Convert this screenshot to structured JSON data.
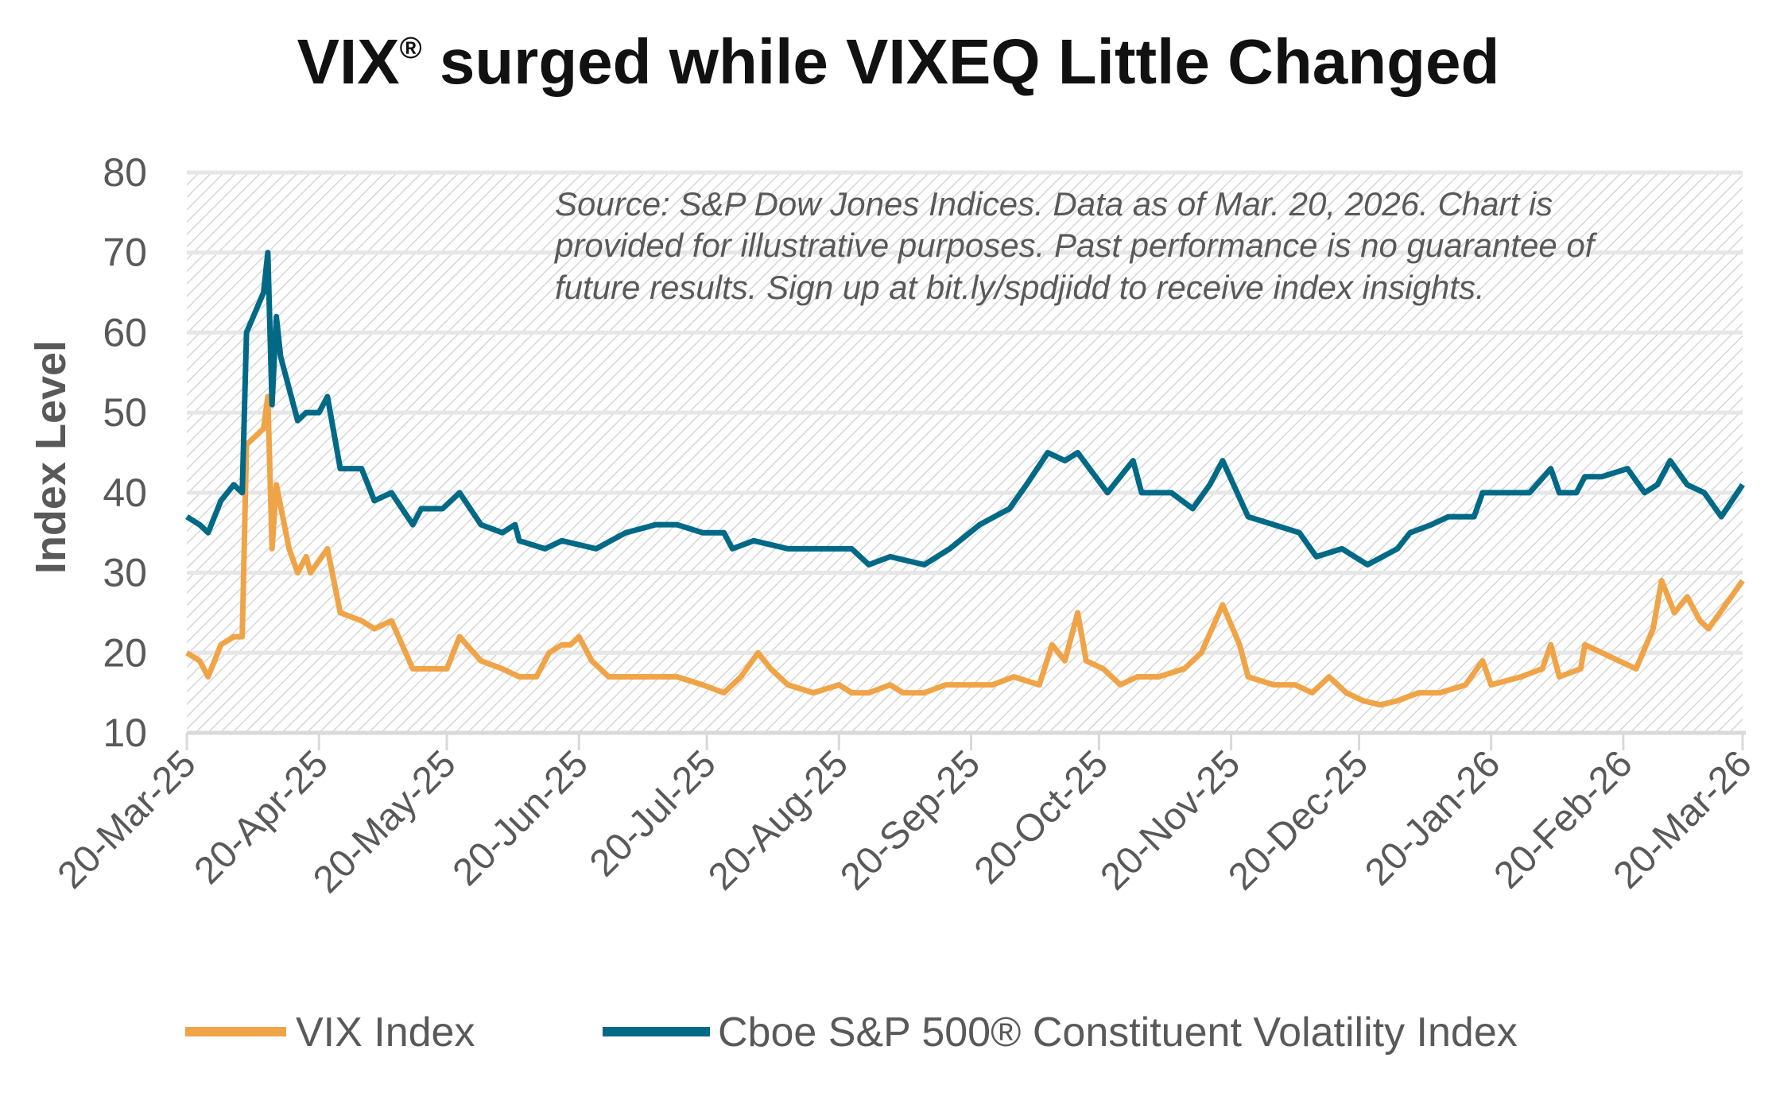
{
  "chart_data": {
    "type": "line",
    "title": {
      "prefix": "VIX",
      "mark": "®",
      "rest": " surged while VIXEQ Little Changed"
    },
    "ylabel": "Index Level",
    "xlabel": "",
    "ylim": [
      10,
      80
    ],
    "yticks": [
      "10",
      "20",
      "30",
      "40",
      "50",
      "60",
      "70",
      "80"
    ],
    "xlim": [
      "2025-03-20",
      "2026-03-20"
    ],
    "xticks": [
      {
        "date": "2025-03-20",
        "label": "20-Mar-25"
      },
      {
        "date": "2025-04-20",
        "label": "20-Apr-25"
      },
      {
        "date": "2025-05-20",
        "label": "20-May-25"
      },
      {
        "date": "2025-06-20",
        "label": "20-Jun-25"
      },
      {
        "date": "2025-07-20",
        "label": "20-Jul-25"
      },
      {
        "date": "2025-08-20",
        "label": "20-Aug-25"
      },
      {
        "date": "2025-09-20",
        "label": "20-Sep-25"
      },
      {
        "date": "2025-10-20",
        "label": "20-Oct-25"
      },
      {
        "date": "2025-11-20",
        "label": "20-Nov-25"
      },
      {
        "date": "2025-12-20",
        "label": "20-Dec-25"
      },
      {
        "date": "2026-01-20",
        "label": "20-Jan-26"
      },
      {
        "date": "2026-02-20",
        "label": "20-Feb-26"
      },
      {
        "date": "2026-03-20",
        "label": "20-Mar-26"
      }
    ],
    "grid": true,
    "background": "diagonal hatch",
    "legend_position": "bottom",
    "annotation": [
      "Source: S&P Dow Jones Indices. Data as of Mar. 20, 2026. Chart is",
      "provided for illustrative purposes. Past performance is no guarantee of",
      "future results. Sign up at bit.ly/spdjidd to receive index insights."
    ],
    "series": [
      {
        "name": "VIX Index",
        "color": "#F0A448",
        "x": [
          "2025-03-20",
          "2025-03-23",
          "2025-03-25",
          "2025-03-28",
          "2025-03-31",
          "2025-04-02",
          "2025-04-03",
          "2025-04-07",
          "2025-04-08",
          "2025-04-09",
          "2025-04-10",
          "2025-04-13",
          "2025-04-15",
          "2025-04-17",
          "2025-04-18",
          "2025-04-22",
          "2025-04-25",
          "2025-04-30",
          "2025-05-03",
          "2025-05-07",
          "2025-05-12",
          "2025-05-16",
          "2025-05-20",
          "2025-05-23",
          "2025-05-28",
          "2025-06-02",
          "2025-06-06",
          "2025-06-10",
          "2025-06-13",
          "2025-06-16",
          "2025-06-18",
          "2025-06-20",
          "2025-06-23",
          "2025-06-27",
          "2025-07-03",
          "2025-07-08",
          "2025-07-13",
          "2025-07-19",
          "2025-07-24",
          "2025-07-28",
          "2025-08-01",
          "2025-08-04",
          "2025-08-08",
          "2025-08-14",
          "2025-08-20",
          "2025-08-23",
          "2025-08-27",
          "2025-09-01",
          "2025-09-04",
          "2025-09-09",
          "2025-09-14",
          "2025-09-20",
          "2025-09-25",
          "2025-09-30",
          "2025-10-06",
          "2025-10-09",
          "2025-10-12",
          "2025-10-15",
          "2025-10-17",
          "2025-10-21",
          "2025-10-25",
          "2025-10-29",
          "2025-11-03",
          "2025-11-09",
          "2025-11-13",
          "2025-11-18",
          "2025-11-22",
          "2025-11-24",
          "2025-11-30",
          "2025-12-05",
          "2025-12-09",
          "2025-12-13",
          "2025-12-17",
          "2025-12-21",
          "2025-12-25",
          "2025-12-29",
          "2026-01-03",
          "2026-01-08",
          "2026-01-14",
          "2026-01-18",
          "2026-01-20",
          "2026-01-27",
          "2026-02-01",
          "2026-02-03",
          "2026-02-05",
          "2026-02-10",
          "2026-02-11",
          "2026-02-15",
          "2026-02-19",
          "2026-02-23",
          "2026-02-27",
          "2026-03-01",
          "2026-03-04",
          "2026-03-07",
          "2026-03-10",
          "2026-03-12",
          "2026-03-20"
        ],
        "y": [
          20,
          19,
          17,
          21,
          22,
          22,
          46,
          48,
          52,
          33,
          41,
          33,
          30,
          32,
          30,
          33,
          25,
          24,
          23,
          24,
          18,
          18,
          18,
          22,
          19,
          18,
          17,
          17,
          20,
          21,
          21,
          22,
          19,
          17,
          17,
          17,
          17,
          16,
          15,
          17,
          20,
          18,
          16,
          15,
          16,
          15,
          15,
          16,
          15,
          15,
          16,
          16,
          16,
          17,
          16,
          21,
          19,
          25,
          19,
          18,
          16,
          17,
          17,
          18,
          20,
          26,
          21,
          17,
          16,
          16,
          15,
          17,
          15,
          14,
          13.5,
          14,
          15,
          15,
          16,
          19,
          16,
          17,
          18,
          21,
          17,
          18,
          21,
          20,
          19,
          18,
          23,
          29,
          25,
          27,
          24,
          23,
          29
        ]
      },
      {
        "name": "Cboe S&P 500® Constituent Volatility Index",
        "color": "#006A86",
        "x": [
          "2025-03-20",
          "2025-03-23",
          "2025-03-25",
          "2025-03-28",
          "2025-03-31",
          "2025-04-02",
          "2025-04-03",
          "2025-04-07",
          "2025-04-08",
          "2025-04-09",
          "2025-04-10",
          "2025-04-11",
          "2025-04-15",
          "2025-04-17",
          "2025-04-20",
          "2025-04-22",
          "2025-04-25",
          "2025-04-30",
          "2025-05-03",
          "2025-05-07",
          "2025-05-12",
          "2025-05-14",
          "2025-05-19",
          "2025-05-23",
          "2025-05-28",
          "2025-06-02",
          "2025-06-05",
          "2025-06-06",
          "2025-06-12",
          "2025-06-16",
          "2025-06-24",
          "2025-07-01",
          "2025-07-08",
          "2025-07-13",
          "2025-07-19",
          "2025-07-24",
          "2025-07-26",
          "2025-07-31",
          "2025-08-08",
          "2025-08-19",
          "2025-08-23",
          "2025-08-27",
          "2025-09-01",
          "2025-09-09",
          "2025-09-15",
          "2025-09-22",
          "2025-09-29",
          "2025-10-03",
          "2025-10-08",
          "2025-10-12",
          "2025-10-15",
          "2025-10-22",
          "2025-10-28",
          "2025-10-30",
          "2025-11-06",
          "2025-11-11",
          "2025-11-15",
          "2025-11-18",
          "2025-11-24",
          "2025-11-30",
          "2025-12-06",
          "2025-12-10",
          "2025-12-16",
          "2025-12-22",
          "2025-12-29",
          "2026-01-01",
          "2026-01-06",
          "2026-01-10",
          "2026-01-16",
          "2026-01-18",
          "2026-01-24",
          "2026-01-29",
          "2026-02-03",
          "2026-02-05",
          "2026-02-09",
          "2026-02-11",
          "2026-02-15",
          "2026-02-21",
          "2026-02-25",
          "2026-02-28",
          "2026-03-03",
          "2026-03-07",
          "2026-03-11",
          "2026-03-15",
          "2026-03-20"
        ],
        "y": [
          37,
          36,
          35,
          39,
          41,
          40,
          60,
          65,
          70,
          51,
          62,
          57,
          49,
          50,
          50,
          52,
          43,
          43,
          39,
          40,
          36,
          38,
          38,
          40,
          36,
          35,
          36,
          34,
          33,
          34,
          33,
          35,
          36,
          36,
          35,
          35,
          33,
          34,
          33,
          33,
          33,
          31,
          32,
          31,
          33,
          36,
          38,
          41,
          45,
          44,
          45,
          40,
          44,
          40,
          40,
          38,
          41,
          44,
          37,
          36,
          35,
          32,
          33,
          31,
          33,
          35,
          36,
          37,
          37,
          40,
          40,
          40,
          43,
          40,
          40,
          42,
          42,
          43,
          40,
          41,
          44,
          41,
          40,
          37,
          41
        ]
      }
    ]
  }
}
